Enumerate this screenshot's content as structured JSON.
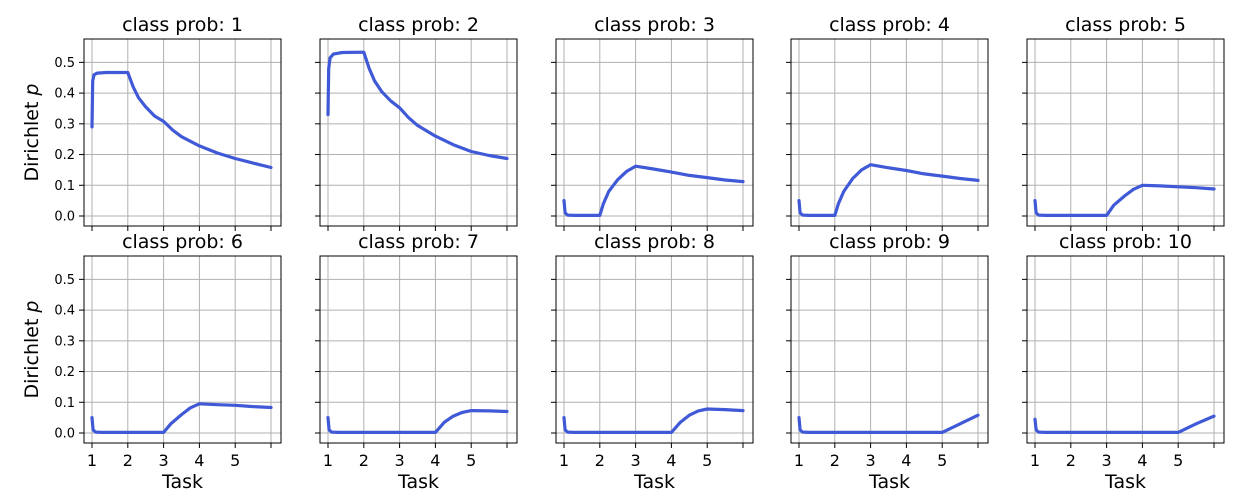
{
  "chart_data": [
    {
      "type": "line",
      "title": "class prob: 1",
      "xlabel": "",
      "ylabel": "Dirichlet p",
      "xlim": [
        1,
        6
      ],
      "ylim": [
        0,
        0.55
      ],
      "grid": true,
      "series": [
        {
          "values": [
            [
              1,
              0.29
            ],
            [
              1.02,
              0.44
            ],
            [
              1.06,
              0.46
            ],
            [
              1.15,
              0.465
            ],
            [
              1.4,
              0.467
            ],
            [
              2,
              0.467
            ],
            [
              2.15,
              0.42
            ],
            [
              2.3,
              0.385
            ],
            [
              2.5,
              0.355
            ],
            [
              2.75,
              0.325
            ],
            [
              3,
              0.308
            ],
            [
              3.25,
              0.28
            ],
            [
              3.5,
              0.258
            ],
            [
              4,
              0.228
            ],
            [
              4.5,
              0.205
            ],
            [
              5,
              0.187
            ],
            [
              5.5,
              0.172
            ],
            [
              6,
              0.158
            ]
          ]
        }
      ]
    },
    {
      "type": "line",
      "title": "class prob: 2",
      "xlabel": "",
      "ylabel": "",
      "xlim": [
        1,
        6
      ],
      "ylim": [
        0,
        0.55
      ],
      "grid": true,
      "series": [
        {
          "values": [
            [
              1,
              0.33
            ],
            [
              1.02,
              0.48
            ],
            [
              1.06,
              0.515
            ],
            [
              1.15,
              0.527
            ],
            [
              1.4,
              0.532
            ],
            [
              2,
              0.533
            ],
            [
              2.15,
              0.48
            ],
            [
              2.3,
              0.44
            ],
            [
              2.5,
              0.405
            ],
            [
              2.75,
              0.375
            ],
            [
              3,
              0.352
            ],
            [
              3.25,
              0.32
            ],
            [
              3.5,
              0.295
            ],
            [
              4,
              0.26
            ],
            [
              4.5,
              0.232
            ],
            [
              5,
              0.21
            ],
            [
              5.5,
              0.197
            ],
            [
              6,
              0.187
            ]
          ]
        }
      ]
    },
    {
      "type": "line",
      "title": "class prob: 3",
      "xlabel": "",
      "ylabel": "",
      "xlim": [
        1,
        6
      ],
      "ylim": [
        0,
        0.55
      ],
      "grid": true,
      "series": [
        {
          "values": [
            [
              1,
              0.05
            ],
            [
              1.03,
              0.01
            ],
            [
              1.1,
              0.003
            ],
            [
              1.3,
              0.002
            ],
            [
              2,
              0.002
            ],
            [
              2.1,
              0.04
            ],
            [
              2.25,
              0.08
            ],
            [
              2.5,
              0.118
            ],
            [
              2.75,
              0.145
            ],
            [
              3,
              0.162
            ],
            [
              3.5,
              0.153
            ],
            [
              4,
              0.143
            ],
            [
              4.5,
              0.132
            ],
            [
              5,
              0.125
            ],
            [
              5.5,
              0.117
            ],
            [
              6,
              0.112
            ]
          ]
        }
      ]
    },
    {
      "type": "line",
      "title": "class prob: 4",
      "xlabel": "",
      "ylabel": "",
      "xlim": [
        1,
        6
      ],
      "ylim": [
        0,
        0.55
      ],
      "grid": true,
      "series": [
        {
          "values": [
            [
              1,
              0.05
            ],
            [
              1.03,
              0.01
            ],
            [
              1.1,
              0.003
            ],
            [
              1.3,
              0.002
            ],
            [
              2,
              0.002
            ],
            [
              2.1,
              0.04
            ],
            [
              2.25,
              0.08
            ],
            [
              2.5,
              0.122
            ],
            [
              2.75,
              0.15
            ],
            [
              3,
              0.167
            ],
            [
              3.5,
              0.157
            ],
            [
              4,
              0.148
            ],
            [
              4.5,
              0.137
            ],
            [
              5,
              0.13
            ],
            [
              5.5,
              0.122
            ],
            [
              6,
              0.116
            ]
          ]
        }
      ]
    },
    {
      "type": "line",
      "title": "class prob: 5",
      "xlabel": "",
      "ylabel": "",
      "xlim": [
        1,
        6
      ],
      "ylim": [
        0,
        0.55
      ],
      "grid": true,
      "series": [
        {
          "values": [
            [
              1,
              0.05
            ],
            [
              1.03,
              0.01
            ],
            [
              1.1,
              0.003
            ],
            [
              1.3,
              0.002
            ],
            [
              3,
              0.002
            ],
            [
              3.2,
              0.035
            ],
            [
              3.5,
              0.065
            ],
            [
              3.75,
              0.087
            ],
            [
              4,
              0.1
            ],
            [
              4.5,
              0.098
            ],
            [
              5,
              0.095
            ],
            [
              5.5,
              0.092
            ],
            [
              6,
              0.088
            ]
          ]
        }
      ]
    },
    {
      "type": "line",
      "title": "class prob: 6",
      "xlabel": "Task",
      "ylabel": "Dirichlet p",
      "xlim": [
        1,
        6
      ],
      "ylim": [
        0,
        0.55
      ],
      "grid": true,
      "series": [
        {
          "values": [
            [
              1,
              0.05
            ],
            [
              1.03,
              0.01
            ],
            [
              1.1,
              0.003
            ],
            [
              1.3,
              0.002
            ],
            [
              3,
              0.002
            ],
            [
              3.2,
              0.03
            ],
            [
              3.5,
              0.06
            ],
            [
              3.75,
              0.082
            ],
            [
              4,
              0.095
            ],
            [
              4.5,
              0.092
            ],
            [
              5,
              0.09
            ],
            [
              5.5,
              0.086
            ],
            [
              6,
              0.083
            ]
          ]
        }
      ]
    },
    {
      "type": "line",
      "title": "class prob: 7",
      "xlabel": "Task",
      "ylabel": "",
      "xlim": [
        1,
        6
      ],
      "ylim": [
        0,
        0.55
      ],
      "grid": true,
      "series": [
        {
          "values": [
            [
              1,
              0.05
            ],
            [
              1.03,
              0.01
            ],
            [
              1.1,
              0.003
            ],
            [
              1.3,
              0.002
            ],
            [
              4,
              0.002
            ],
            [
              4.25,
              0.035
            ],
            [
              4.5,
              0.055
            ],
            [
              4.75,
              0.067
            ],
            [
              5,
              0.073
            ],
            [
              5.5,
              0.072
            ],
            [
              6,
              0.07
            ]
          ]
        }
      ]
    },
    {
      "type": "line",
      "title": "class prob: 8",
      "xlabel": "Task",
      "ylabel": "",
      "xlim": [
        1,
        6
      ],
      "ylim": [
        0,
        0.55
      ],
      "grid": true,
      "series": [
        {
          "values": [
            [
              1,
              0.05
            ],
            [
              1.03,
              0.01
            ],
            [
              1.1,
              0.003
            ],
            [
              1.3,
              0.002
            ],
            [
              4,
              0.002
            ],
            [
              4.25,
              0.035
            ],
            [
              4.5,
              0.058
            ],
            [
              4.75,
              0.072
            ],
            [
              5,
              0.078
            ],
            [
              5.5,
              0.076
            ],
            [
              6,
              0.073
            ]
          ]
        }
      ]
    },
    {
      "type": "line",
      "title": "class prob: 9",
      "xlabel": "Task",
      "ylabel": "",
      "xlim": [
        1,
        6
      ],
      "ylim": [
        0,
        0.55
      ],
      "grid": true,
      "series": [
        {
          "values": [
            [
              1,
              0.05
            ],
            [
              1.03,
              0.01
            ],
            [
              1.1,
              0.003
            ],
            [
              1.3,
              0.002
            ],
            [
              5,
              0.002
            ],
            [
              5.5,
              0.03
            ],
            [
              6,
              0.058
            ]
          ]
        }
      ]
    },
    {
      "type": "line",
      "title": "class prob: 10",
      "xlabel": "Task",
      "ylabel": "",
      "xlim": [
        1,
        6
      ],
      "ylim": [
        0,
        0.55
      ],
      "grid": true,
      "series": [
        {
          "values": [
            [
              1,
              0.045
            ],
            [
              1.03,
              0.01
            ],
            [
              1.1,
              0.003
            ],
            [
              1.3,
              0.002
            ],
            [
              5,
              0.002
            ],
            [
              5.5,
              0.03
            ],
            [
              6,
              0.055
            ]
          ]
        }
      ]
    }
  ],
  "axes": {
    "yticks": [
      0,
      0.1,
      0.2,
      0.3,
      0.4,
      0.5
    ],
    "ytick_labels": [
      "0.0",
      "0.1",
      "0.2",
      "0.3",
      "0.4",
      "0.5"
    ],
    "xticks": [
      1,
      2,
      3,
      4,
      5,
      6
    ],
    "xtick_labels": [
      "1",
      "2",
      "3",
      "4",
      "5",
      ""
    ]
  },
  "colors": {
    "line": "#4059d6",
    "grid": "#b0b0b0",
    "axes": "#000000"
  }
}
